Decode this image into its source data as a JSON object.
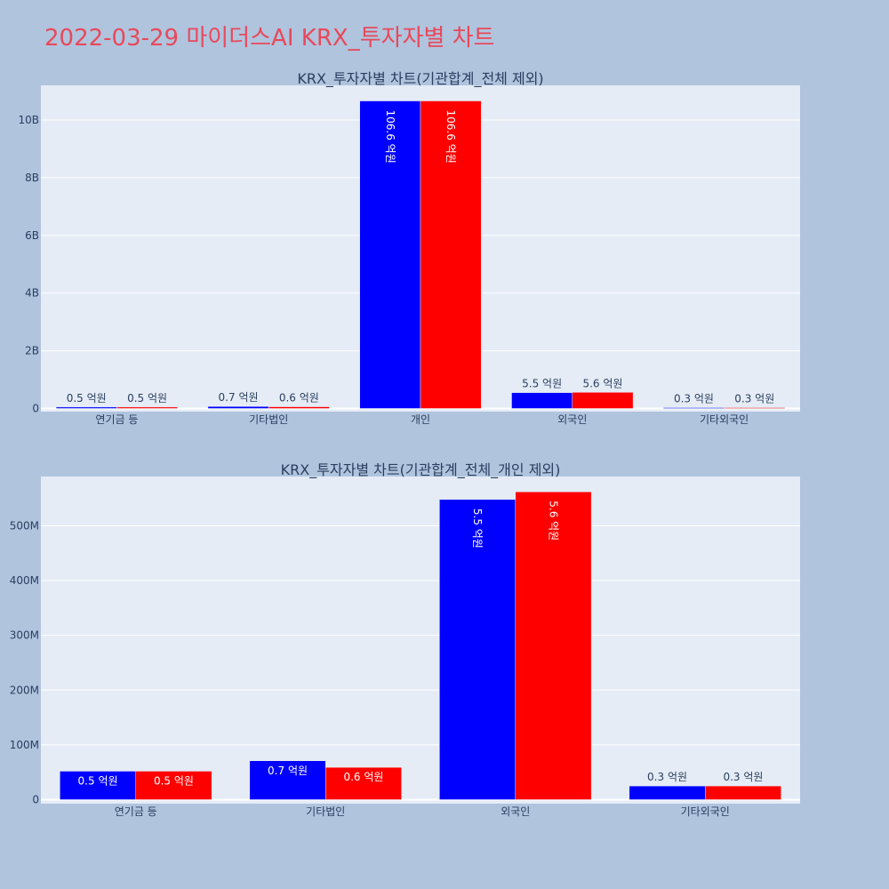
{
  "page_title": "2022-03-29 마이더스AI KRX_투자자별 차트",
  "colors": {
    "buy": "#0000ff",
    "sell": "#ff0000",
    "title": "#e8495a",
    "plot_bg": "#e5ecf6",
    "page_bg": "#b0c4de",
    "text": "#2a3f5f"
  },
  "chart_data": [
    {
      "type": "bar",
      "title": "KRX_투자자별 차트(기관합계_전체 제외)",
      "categories": [
        "연기금 등",
        "기타법인",
        "개인",
        "외국인",
        "기타외국인"
      ],
      "series": [
        {
          "color": "#0000ff",
          "values": [
            50000000,
            70000000,
            10660000000,
            550000000,
            30000000
          ],
          "labels": [
            "0.5 억원",
            "0.7 억원",
            "106.6 억원",
            "5.5 억원",
            "0.3 억원"
          ]
        },
        {
          "color": "#ff0000",
          "values": [
            50000000,
            60000000,
            10660000000,
            560000000,
            30000000
          ],
          "labels": [
            "0.5 억원",
            "0.6 억원",
            "106.6 억원",
            "5.6 억원",
            "0.3 억원"
          ]
        }
      ],
      "ylim": [
        0,
        11200000000
      ],
      "yticks": [
        0,
        2000000000,
        4000000000,
        6000000000,
        8000000000,
        10000000000
      ],
      "ytick_labels": [
        "0",
        "2B",
        "4B",
        "6B",
        "8B",
        "10B"
      ],
      "grid": true
    },
    {
      "type": "bar",
      "title": "KRX_투자자별 차트(기관합계_전체_개인 제외)",
      "categories": [
        "연기금 등",
        "기타법인",
        "외국인",
        "기타외국인"
      ],
      "series": [
        {
          "color": "#0000ff",
          "values": [
            52000000,
            71000000,
            548000000,
            25000000
          ],
          "labels": [
            "0.5 억원",
            "0.7 억원",
            "5.5 억원",
            "0.3 억원"
          ]
        },
        {
          "color": "#ff0000",
          "values": [
            52000000,
            59000000,
            562000000,
            25000000
          ],
          "labels": [
            "0.5 억원",
            "0.6 억원",
            "5.6 억원",
            "0.3 억원"
          ]
        }
      ],
      "ylim": [
        0,
        590000000
      ],
      "yticks": [
        0,
        100000000,
        200000000,
        300000000,
        400000000,
        500000000
      ],
      "ytick_labels": [
        "0",
        "100M",
        "200M",
        "300M",
        "400M",
        "500M"
      ],
      "grid": true
    }
  ]
}
